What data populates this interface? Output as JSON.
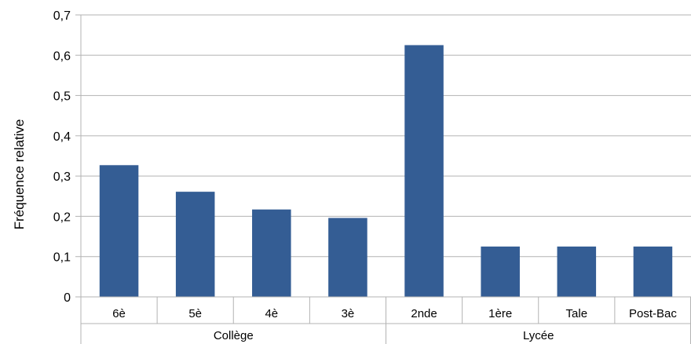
{
  "chart_data": {
    "type": "bar",
    "ylabel": "Fréquence relative",
    "ylim": [
      0,
      0.7
    ],
    "y_ticks": [
      "0",
      "0,1",
      "0,2",
      "0,3",
      "0,4",
      "0,5",
      "0,6",
      "0,7"
    ],
    "grid": true,
    "categories": [
      "6è",
      "5è",
      "4è",
      "3è",
      "2nde",
      "1ère",
      "Tale",
      "Post-Bac"
    ],
    "groups": [
      {
        "label": "Collège",
        "members": [
          "6è",
          "5è",
          "4è",
          "3è"
        ]
      },
      {
        "label": "Lycée",
        "members": [
          "2nde",
          "1ère",
          "Tale",
          "Post-Bac"
        ]
      }
    ],
    "values": [
      0.327,
      0.261,
      0.217,
      0.196,
      0.625,
      0.125,
      0.125,
      0.125
    ],
    "bar_color": "#345d94"
  }
}
